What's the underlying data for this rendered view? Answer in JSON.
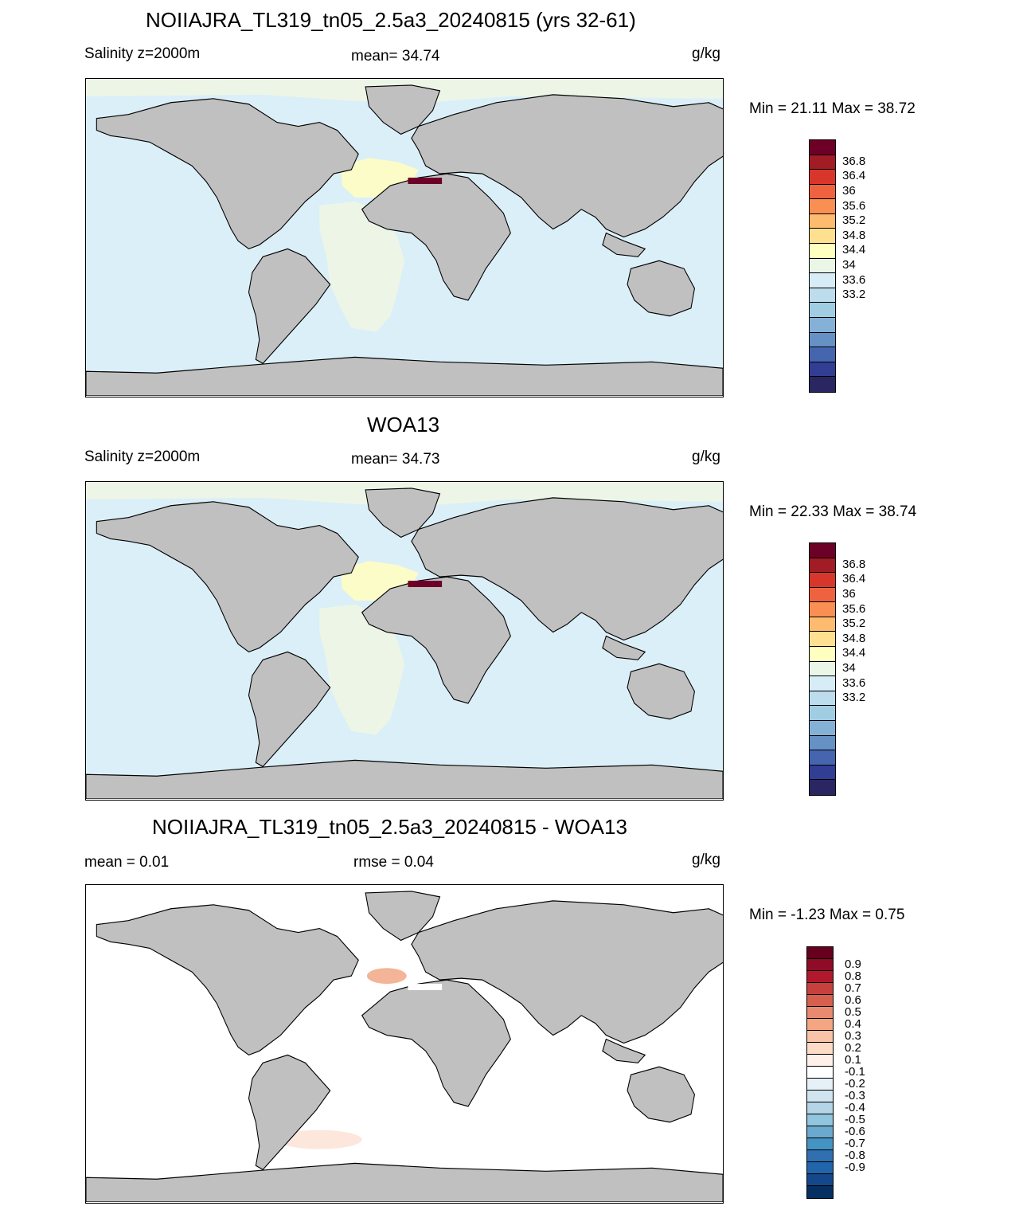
{
  "panels": [
    {
      "title": "NOIIAJRA_TL319_tn05_2.5a3_20240815 (yrs 32-61)",
      "left_label": "Salinity z=2000m",
      "center_label": "mean=  34.74",
      "units": "g/kg",
      "minmax": "Min =  21.11 Max =  38.72",
      "ocean_fill": "#dbeff8",
      "colorbar": {
        "colors": [
          "#6d0026",
          "#a11c25",
          "#d8362b",
          "#ee6240",
          "#f98f53",
          "#fcbb6f",
          "#fee090",
          "#ffffbf",
          "#eaf7e6",
          "#d6ecf6",
          "#bddcec",
          "#a1cde3",
          "#85b1d7",
          "#6591c4",
          "#4566ae",
          "#323d94",
          "#292662"
        ],
        "labels": [
          "36.8",
          "36.4",
          "36",
          "35.6",
          "35.2",
          "34.8",
          "34.4",
          "34",
          "33.6",
          "33.2"
        ]
      }
    },
    {
      "title": "WOA13",
      "left_label": "Salinity z=2000m",
      "center_label": "mean=  34.73",
      "units": "g/kg",
      "minmax": "Min =  22.33 Max =  38.74",
      "ocean_fill": "#dbeff8",
      "colorbar": {
        "colors": [
          "#6d0026",
          "#a11c25",
          "#d8362b",
          "#ee6240",
          "#f98f53",
          "#fcbb6f",
          "#fee090",
          "#ffffbf",
          "#eaf7e6",
          "#d6ecf6",
          "#bddcec",
          "#a1cde3",
          "#85b1d7",
          "#6591c4",
          "#4566ae",
          "#323d94",
          "#292662"
        ],
        "labels": [
          "36.8",
          "36.4",
          "36",
          "35.6",
          "35.2",
          "34.8",
          "34.4",
          "34",
          "33.6",
          "33.2"
        ]
      }
    },
    {
      "title": "NOIIAJRA_TL319_tn05_2.5a3_20240815 - WOA13",
      "left_label": "mean =   0.01",
      "center_label": "rmse =   0.04",
      "units": "g/kg",
      "minmax": "Min =  -1.23 Max =   0.75",
      "ocean_fill": "#ffffff",
      "colorbar": {
        "colors": [
          "#67001f",
          "#8e0c25",
          "#b2182b",
          "#c7403d",
          "#d6604d",
          "#e78a70",
          "#f4a582",
          "#f8c3a6",
          "#fddbc7",
          "#fff1ea",
          "#ffffff",
          "#e6f1f7",
          "#d1e5f0",
          "#b3d5e7",
          "#92c5de",
          "#6ba9cf",
          "#4393c3",
          "#3070b0",
          "#2166ac",
          "#15488a",
          "#053061"
        ],
        "labels": [
          "0.9",
          "0.8",
          "0.7",
          "0.6",
          "0.5",
          "0.4",
          "0.3",
          "0.2",
          "0.1",
          "-0.1",
          "-0.2",
          "-0.3",
          "-0.4",
          "-0.5",
          "-0.6",
          "-0.7",
          "-0.8",
          "-0.9"
        ]
      }
    }
  ]
}
